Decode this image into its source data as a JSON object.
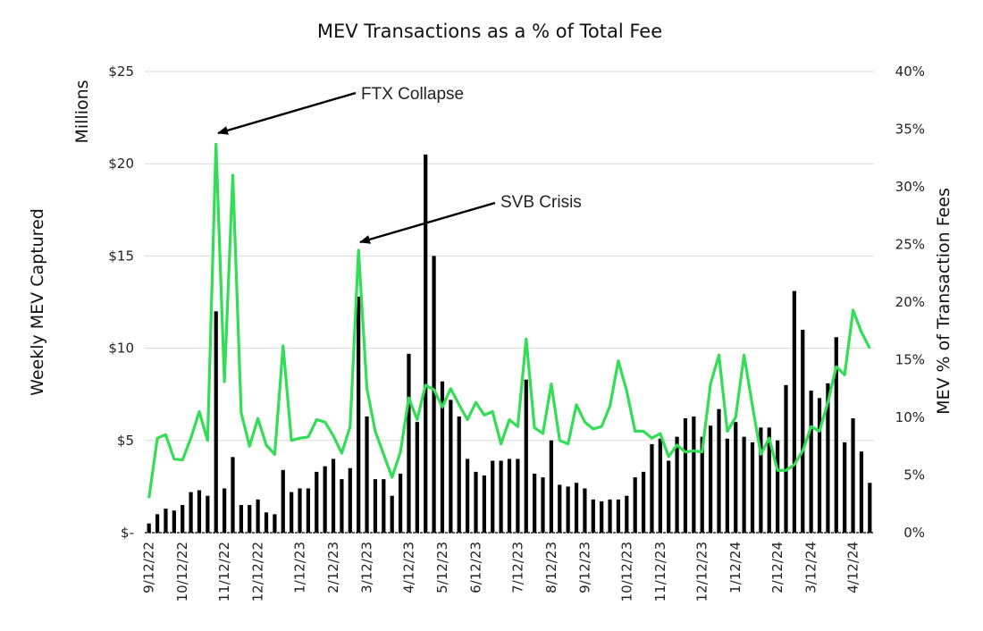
{
  "chart_data": {
    "type": "bar+line",
    "title": "MEV Transactions as a % of Total Fee",
    "ylabel_left": "Weekly MEV Captured",
    "ylabel_left_unit": "Millions",
    "ylabel_right": "MEV % of Transaction Fees",
    "ylim_left": [
      0,
      25
    ],
    "ylim_right": [
      0,
      40
    ],
    "left_ticks": [
      "$-",
      "$5",
      "$10",
      "$15",
      "$20",
      "$25"
    ],
    "right_ticks": [
      "0%",
      "5%",
      "10%",
      "15%",
      "20%",
      "25%",
      "30%",
      "35%",
      "40%"
    ],
    "x_tick_labels": [
      "9/12/22",
      "10/12/22",
      "11/12/22",
      "12/12/22",
      "1/12/23",
      "2/12/23",
      "3/12/23",
      "4/12/23",
      "5/12/23",
      "6/12/23",
      "7/12/23",
      "8/12/23",
      "9/12/23",
      "10/12/23",
      "11/12/23",
      "12/12/23",
      "1/12/24",
      "2/12/24",
      "3/12/24",
      "4/12/24"
    ],
    "x_tick_index": [
      0,
      4,
      9,
      13,
      18,
      22,
      26,
      31,
      35,
      39,
      44,
      48,
      52,
      57,
      61,
      66,
      70,
      75,
      79,
      84
    ],
    "series": [
      {
        "name": "Weekly MEV Captured ($M)",
        "type": "bar",
        "color": "#000000",
        "values": [
          0.5,
          1.0,
          1.3,
          1.2,
          1.5,
          2.2,
          2.3,
          2.0,
          12.0,
          2.4,
          4.1,
          1.5,
          1.5,
          1.8,
          1.1,
          1.0,
          3.4,
          2.2,
          2.4,
          2.4,
          3.3,
          3.6,
          4.0,
          2.9,
          3.5,
          12.8,
          6.3,
          2.9,
          2.9,
          2.0,
          3.2,
          9.7,
          6.0,
          20.5,
          15.0,
          8.2,
          7.2,
          6.3,
          4.0,
          3.3,
          3.1,
          3.9,
          3.9,
          4.0,
          4.0,
          8.3,
          3.2,
          3.0,
          5.0,
          2.6,
          2.5,
          2.7,
          2.4,
          1.8,
          1.7,
          1.8,
          1.8,
          2.0,
          3.0,
          3.3,
          4.8,
          5.1,
          3.9,
          5.2,
          6.2,
          6.3,
          5.2,
          5.8,
          6.7,
          5.1,
          6.0,
          5.2,
          4.9,
          5.7,
          5.7,
          5.0,
          8.0,
          13.1,
          11.0,
          7.7,
          7.3,
          8.1,
          10.6,
          4.9,
          6.2,
          4.4,
          2.7
        ]
      },
      {
        "name": "MEV % of Transaction Fees",
        "type": "line",
        "color": "#33dd55",
        "values": [
          3.0,
          8.2,
          8.5,
          6.4,
          6.3,
          8.2,
          10.5,
          8.0,
          33.7,
          13.1,
          31.0,
          10.4,
          7.5,
          9.9,
          7.6,
          6.8,
          16.2,
          8.0,
          8.2,
          8.3,
          9.8,
          9.6,
          8.4,
          6.9,
          9.2,
          24.5,
          12.5,
          8.8,
          6.8,
          4.8,
          7.0,
          11.7,
          9.8,
          12.8,
          12.4,
          10.9,
          12.5,
          11.1,
          9.8,
          11.3,
          10.2,
          10.5,
          7.7,
          9.8,
          9.2,
          16.8,
          9.1,
          8.6,
          12.9,
          8.0,
          7.7,
          11.1,
          9.6,
          9.0,
          9.2,
          11.0,
          14.9,
          12.3,
          8.8,
          8.8,
          8.2,
          8.6,
          6.6,
          7.6,
          7.0,
          7.1,
          7.0,
          12.9,
          15.4,
          8.8,
          10.0,
          15.4,
          11.0,
          6.8,
          8.2,
          5.4,
          5.4,
          5.9,
          7.1,
          9.2,
          8.8,
          11.3,
          14.4,
          13.7,
          19.3,
          17.4,
          16.0
        ]
      }
    ],
    "annotations": [
      {
        "text": "FTX Collapse",
        "points_to_index": 8
      },
      {
        "text": "SVB Crisis",
        "points_to_index": 25
      }
    ]
  }
}
